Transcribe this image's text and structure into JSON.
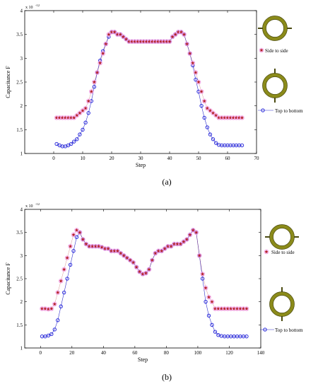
{
  "colors": {
    "side_series": "#b22222",
    "side_halo": "#f2a0e6",
    "top_series": "#1a1ad9",
    "top_line": "#3333cc",
    "ring_fill": "#8b8b1a",
    "ring_dark": "#4a4a10"
  },
  "chart_data": [
    {
      "type": "scatter",
      "title": "",
      "caption": "(a)",
      "xlabel": "Step",
      "ylabel": "Capacitance F",
      "y_exponent": "x 10",
      "y_exponent_power": "-12",
      "xlim": [
        -10,
        70
      ],
      "ylim": [
        1,
        4
      ],
      "xticks": [
        "0",
        "10",
        "20",
        "30",
        "40",
        "50",
        "60",
        "70"
      ],
      "yticks": [
        "1",
        "1.5",
        "2",
        "2.5",
        "3",
        "3.5",
        "4"
      ],
      "grid": false,
      "series": [
        {
          "name": "Side to side",
          "marker": "star",
          "x": [
            1,
            2,
            3,
            4,
            5,
            6,
            7,
            8,
            9,
            10,
            11,
            12,
            13,
            14,
            15,
            16,
            17,
            18,
            19,
            20,
            21,
            22,
            23,
            24,
            25,
            26,
            27,
            28,
            29,
            30,
            31,
            32,
            33,
            34,
            35,
            36,
            37,
            38,
            39,
            40,
            41,
            42,
            43,
            44,
            45,
            46,
            47,
            48,
            49,
            50,
            51,
            52,
            53,
            54,
            55,
            56,
            57,
            58,
            59,
            60,
            61,
            62,
            63,
            64,
            65
          ],
          "y": [
            1.75,
            1.75,
            1.75,
            1.75,
            1.75,
            1.75,
            1.75,
            1.8,
            1.85,
            1.9,
            1.95,
            2.1,
            2.3,
            2.5,
            2.7,
            2.9,
            3.1,
            3.3,
            3.5,
            3.55,
            3.55,
            3.5,
            3.5,
            3.45,
            3.4,
            3.35,
            3.35,
            3.35,
            3.35,
            3.35,
            3.35,
            3.35,
            3.35,
            3.35,
            3.35,
            3.35,
            3.35,
            3.35,
            3.35,
            3.35,
            3.45,
            3.5,
            3.55,
            3.55,
            3.5,
            3.3,
            3.1,
            2.9,
            2.7,
            2.5,
            2.3,
            2.1,
            1.95,
            1.9,
            1.85,
            1.8,
            1.75,
            1.75,
            1.75,
            1.75,
            1.75,
            1.75,
            1.75,
            1.75,
            1.75
          ]
        },
        {
          "name": "Top to bottom",
          "marker": "circle",
          "x": [
            1,
            2,
            3,
            4,
            5,
            6,
            7,
            8,
            9,
            10,
            11,
            12,
            13,
            14,
            15,
            16,
            17,
            18,
            19,
            20,
            21,
            22,
            23,
            24,
            25,
            26,
            27,
            28,
            29,
            30,
            31,
            32,
            33,
            34,
            35,
            36,
            37,
            38,
            39,
            40,
            41,
            42,
            43,
            44,
            45,
            46,
            47,
            48,
            49,
            50,
            51,
            52,
            53,
            54,
            55,
            56,
            57,
            58,
            59,
            60,
            61,
            62,
            63,
            64,
            65
          ],
          "y": [
            1.2,
            1.17,
            1.15,
            1.15,
            1.17,
            1.2,
            1.25,
            1.3,
            1.4,
            1.5,
            1.65,
            1.85,
            2.1,
            2.4,
            2.7,
            2.95,
            3.15,
            3.3,
            3.45,
            3.55,
            3.55,
            3.5,
            3.5,
            3.45,
            3.4,
            3.35,
            3.35,
            3.35,
            3.35,
            3.35,
            3.35,
            3.35,
            3.35,
            3.35,
            3.35,
            3.35,
            3.35,
            3.35,
            3.35,
            3.35,
            3.45,
            3.5,
            3.55,
            3.55,
            3.5,
            3.3,
            3.1,
            2.85,
            2.55,
            2.3,
            2.0,
            1.75,
            1.55,
            1.4,
            1.3,
            1.22,
            1.18,
            1.17,
            1.17,
            1.17,
            1.17,
            1.17,
            1.17,
            1.17,
            1.17
          ]
        }
      ]
    },
    {
      "type": "scatter",
      "title": "",
      "caption": "(b)",
      "xlabel": "Step",
      "ylabel": "Capacitance F",
      "y_exponent": "x 10",
      "y_exponent_power": "-12",
      "xlim": [
        -10,
        140
      ],
      "ylim": [
        1,
        4
      ],
      "xticks": [
        "0",
        "20",
        "40",
        "60",
        "80",
        "100",
        "120",
        "140"
      ],
      "yticks": [
        "1",
        "1.5",
        "2",
        "2.5",
        "3",
        "3.5",
        "4"
      ],
      "grid": false,
      "series": [
        {
          "name": "Side to side",
          "marker": "star",
          "x": [
            1,
            3,
            5,
            7,
            9,
            11,
            13,
            15,
            17,
            19,
            21,
            23,
            25,
            27,
            29,
            31,
            33,
            35,
            37,
            39,
            41,
            43,
            45,
            47,
            49,
            51,
            53,
            55,
            57,
            59,
            61,
            63,
            65,
            67,
            69,
            71,
            73,
            75,
            77,
            79,
            81,
            83,
            85,
            87,
            89,
            91,
            93,
            95,
            97,
            99,
            101,
            103,
            105,
            107,
            109,
            111,
            113,
            115,
            117,
            119,
            121,
            123,
            125,
            127,
            129,
            131
          ],
          "y": [
            1.85,
            1.85,
            1.84,
            1.85,
            1.95,
            2.2,
            2.45,
            2.7,
            2.95,
            3.2,
            3.45,
            3.55,
            3.5,
            3.35,
            3.25,
            3.2,
            3.2,
            3.2,
            3.2,
            3.18,
            3.15,
            3.15,
            3.1,
            3.1,
            3.1,
            3.05,
            3.0,
            2.95,
            2.9,
            2.85,
            2.75,
            2.65,
            2.6,
            2.62,
            2.7,
            2.9,
            3.05,
            3.1,
            3.1,
            3.15,
            3.2,
            3.2,
            3.25,
            3.25,
            3.25,
            3.3,
            3.35,
            3.45,
            3.55,
            3.5,
            3.0,
            2.6,
            2.3,
            2.1,
            2.0,
            1.85,
            1.85,
            1.85,
            1.85,
            1.85,
            1.85,
            1.85,
            1.85,
            1.85,
            1.85,
            1.85
          ]
        },
        {
          "name": "Top to bottom",
          "marker": "circle",
          "x": [
            1,
            3,
            5,
            7,
            9,
            11,
            13,
            15,
            17,
            19,
            21,
            23,
            25,
            27,
            29,
            31,
            33,
            35,
            37,
            39,
            41,
            43,
            45,
            47,
            49,
            51,
            53,
            55,
            57,
            59,
            61,
            63,
            65,
            67,
            69,
            71,
            73,
            75,
            77,
            79,
            81,
            83,
            85,
            87,
            89,
            91,
            93,
            95,
            97,
            99,
            101,
            103,
            105,
            107,
            109,
            111,
            113,
            115,
            117,
            119,
            121,
            123,
            125,
            127,
            129,
            131
          ],
          "y": [
            1.25,
            1.25,
            1.27,
            1.3,
            1.4,
            1.6,
            1.9,
            2.2,
            2.5,
            2.8,
            3.1,
            3.4,
            3.5,
            3.35,
            3.25,
            3.2,
            3.2,
            3.2,
            3.2,
            3.18,
            3.15,
            3.15,
            3.1,
            3.1,
            3.1,
            3.05,
            3.0,
            2.95,
            2.9,
            2.85,
            2.75,
            2.65,
            2.6,
            2.62,
            2.7,
            2.9,
            3.05,
            3.1,
            3.1,
            3.15,
            3.2,
            3.2,
            3.25,
            3.25,
            3.25,
            3.3,
            3.35,
            3.45,
            3.55,
            3.5,
            3.0,
            2.5,
            2.0,
            1.7,
            1.5,
            1.35,
            1.28,
            1.26,
            1.25,
            1.25,
            1.25,
            1.25,
            1.25,
            1.25,
            1.25,
            1.25
          ]
        }
      ]
    }
  ]
}
